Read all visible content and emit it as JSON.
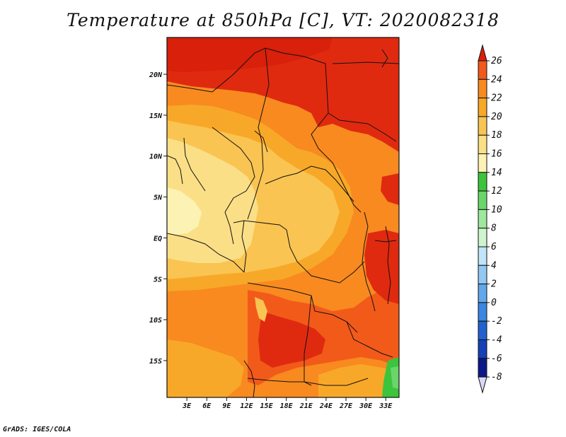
{
  "title": "Temperature at 850hPa [C], VT: 2020082318",
  "credit": "GrADS: IGES/COLA",
  "map": {
    "lat_labels": [
      "20N",
      "15N",
      "10N",
      "5N",
      "EQ",
      "5S",
      "10S",
      "15S"
    ],
    "lat_values": [
      20,
      15,
      10,
      5,
      0,
      -5,
      -10,
      -15
    ],
    "lon_labels": [
      "3E",
      "6E",
      "9E",
      "12E",
      "15E",
      "18E",
      "21E",
      "24E",
      "27E",
      "30E",
      "33E"
    ],
    "lon_values": [
      3,
      6,
      9,
      12,
      15,
      18,
      21,
      24,
      27,
      30,
      33
    ],
    "lon_range": [
      0,
      35
    ],
    "lat_range": [
      -19.5,
      24.5
    ]
  },
  "colorbar": {
    "labels": [
      "26",
      "24",
      "22",
      "20",
      "18",
      "16",
      "14",
      "12",
      "10",
      "8",
      "6",
      "4",
      "2",
      "0",
      "-2",
      "-4",
      "-6",
      "-8"
    ],
    "colors": [
      "#e02a10",
      "#f25a1a",
      "#f88a20",
      "#f8a828",
      "#f9c452",
      "#fbdf86",
      "#fbf2b4",
      "#3cc43c",
      "#6ad66a",
      "#9de89d",
      "#cef5ce",
      "#c2e4fa",
      "#92c8f2",
      "#62a8ea",
      "#3a86e0",
      "#2262d0",
      "#1440b8",
      "#0a1888",
      "#060a50"
    ],
    "top_arrow_color": "#d8200a",
    "bottom_arrow_color": "#d8d8f8"
  }
}
